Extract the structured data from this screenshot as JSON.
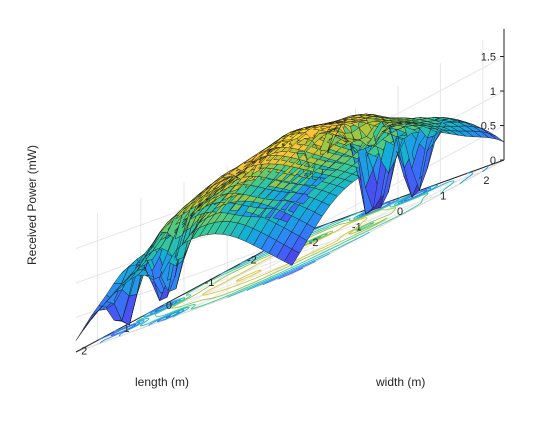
{
  "chart_data": {
    "type": "surface",
    "title": "",
    "zlabel": "Received Power (mW)",
    "xlabel": "length (m)",
    "ylabel": "width (m)",
    "xlim": [
      -2.5,
      2.5
    ],
    "ylim": [
      -2.5,
      2.5
    ],
    "zlim": [
      0,
      1.9
    ],
    "x_ticks": [
      "-2",
      "-1",
      "0",
      "1",
      "2"
    ],
    "y_ticks": [
      "-2",
      "-1",
      "0",
      "1",
      "2"
    ],
    "z_ticks": [
      "0",
      "0.5",
      "1",
      "1.5"
    ],
    "grid": true,
    "colormap": "parula",
    "contour_on_floor": true,
    "peak_value": 1.75,
    "corner_value": 0.2
  }
}
